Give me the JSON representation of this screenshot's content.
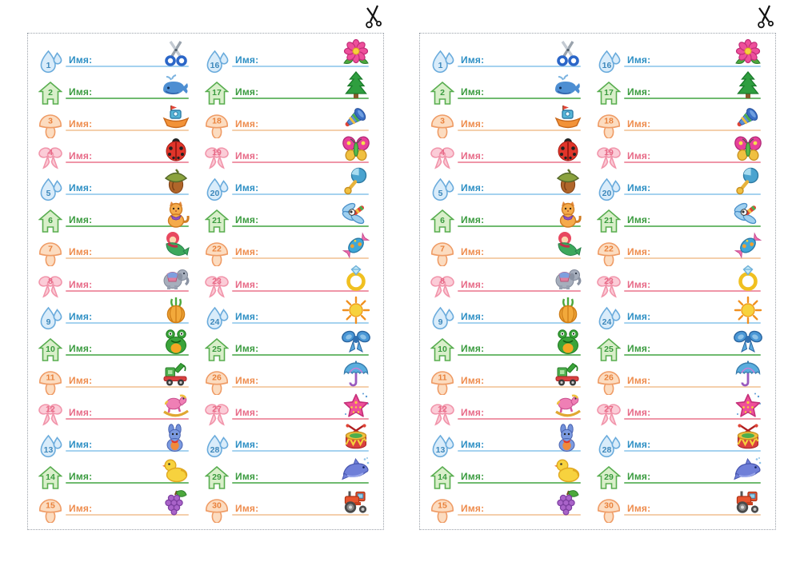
{
  "document": {
    "type": "printable-name-labels-sheet",
    "background": "#ffffff",
    "border_style": "dotted",
    "border_color": "#9aa0a8"
  },
  "name_label": "Имя:",
  "panels": [
    {
      "id": "panel-1"
    },
    {
      "id": "panel-2"
    }
  ],
  "cut_mark": {
    "icon": "scissors-cut-mark",
    "color": "#111111"
  },
  "badge_styles": {
    "droplet": {
      "badge_fill": "#d9ecfa",
      "badge_stroke": "#6aabdc",
      "number_color": "#3e88bb",
      "text_color": "#2d8fc4",
      "line_color": "#a5d2ef"
    },
    "house": {
      "badge_fill": "#d9efca",
      "badge_stroke": "#58ad4f",
      "number_color": "#3a9b3f",
      "text_color": "#3a9b3f",
      "line_color": "#6fba6f"
    },
    "mushroom": {
      "badge_fill": "#fcdcc0",
      "badge_stroke": "#ef9c66",
      "number_color": "#e9823c",
      "text_color": "#ee8c4d",
      "line_color": "#f4cfac"
    },
    "bow": {
      "badge_fill": "#fbccd7",
      "badge_stroke": "#f195ab",
      "number_color": "#e76a87",
      "text_color": "#e76a87",
      "line_color": "#ef96a8"
    }
  },
  "labels": [
    {
      "num": "1",
      "badge": "droplet",
      "icon": "scissors",
      "value": ""
    },
    {
      "num": "2",
      "badge": "house",
      "icon": "whale",
      "value": ""
    },
    {
      "num": "3",
      "badge": "mushroom",
      "icon": "boat",
      "value": ""
    },
    {
      "num": "4",
      "badge": "bow",
      "icon": "ladybug",
      "value": ""
    },
    {
      "num": "5",
      "badge": "droplet",
      "icon": "acorn",
      "value": ""
    },
    {
      "num": "6",
      "badge": "house",
      "icon": "kitten",
      "value": ""
    },
    {
      "num": "7",
      "badge": "mushroom",
      "icon": "mermaid",
      "value": ""
    },
    {
      "num": "8",
      "badge": "bow",
      "icon": "elephant",
      "value": ""
    },
    {
      "num": "9",
      "badge": "droplet",
      "icon": "onion",
      "value": ""
    },
    {
      "num": "10",
      "badge": "house",
      "icon": "frog",
      "value": ""
    },
    {
      "num": "11",
      "badge": "mushroom",
      "icon": "toy-truck-crane",
      "value": ""
    },
    {
      "num": "12",
      "badge": "bow",
      "icon": "rocking-horse",
      "value": ""
    },
    {
      "num": "13",
      "badge": "droplet",
      "icon": "bunny",
      "value": ""
    },
    {
      "num": "14",
      "badge": "house",
      "icon": "duck",
      "value": ""
    },
    {
      "num": "15",
      "badge": "mushroom",
      "icon": "grapes",
      "value": ""
    },
    {
      "num": "16",
      "badge": "droplet",
      "icon": "flower",
      "value": ""
    },
    {
      "num": "17",
      "badge": "house",
      "icon": "christmas-tree",
      "value": ""
    },
    {
      "num": "18",
      "badge": "mushroom",
      "icon": "trumpet",
      "value": ""
    },
    {
      "num": "19",
      "badge": "bow",
      "icon": "butterfly",
      "value": ""
    },
    {
      "num": "20",
      "badge": "droplet",
      "icon": "rattle",
      "value": ""
    },
    {
      "num": "21",
      "badge": "house",
      "icon": "dragonfly",
      "value": ""
    },
    {
      "num": "22",
      "badge": "mushroom",
      "icon": "candy",
      "value": ""
    },
    {
      "num": "23",
      "badge": "bow",
      "icon": "ring",
      "value": ""
    },
    {
      "num": "24",
      "badge": "droplet",
      "icon": "sun",
      "value": ""
    },
    {
      "num": "25",
      "badge": "house",
      "icon": "blue-bow",
      "value": ""
    },
    {
      "num": "26",
      "badge": "mushroom",
      "icon": "umbrella",
      "value": ""
    },
    {
      "num": "27",
      "badge": "bow",
      "icon": "starfish",
      "value": ""
    },
    {
      "num": "28",
      "badge": "droplet",
      "icon": "drum",
      "value": ""
    },
    {
      "num": "29",
      "badge": "house",
      "icon": "dolphin",
      "value": ""
    },
    {
      "num": "30",
      "badge": "mushroom",
      "icon": "tractor",
      "value": ""
    }
  ]
}
